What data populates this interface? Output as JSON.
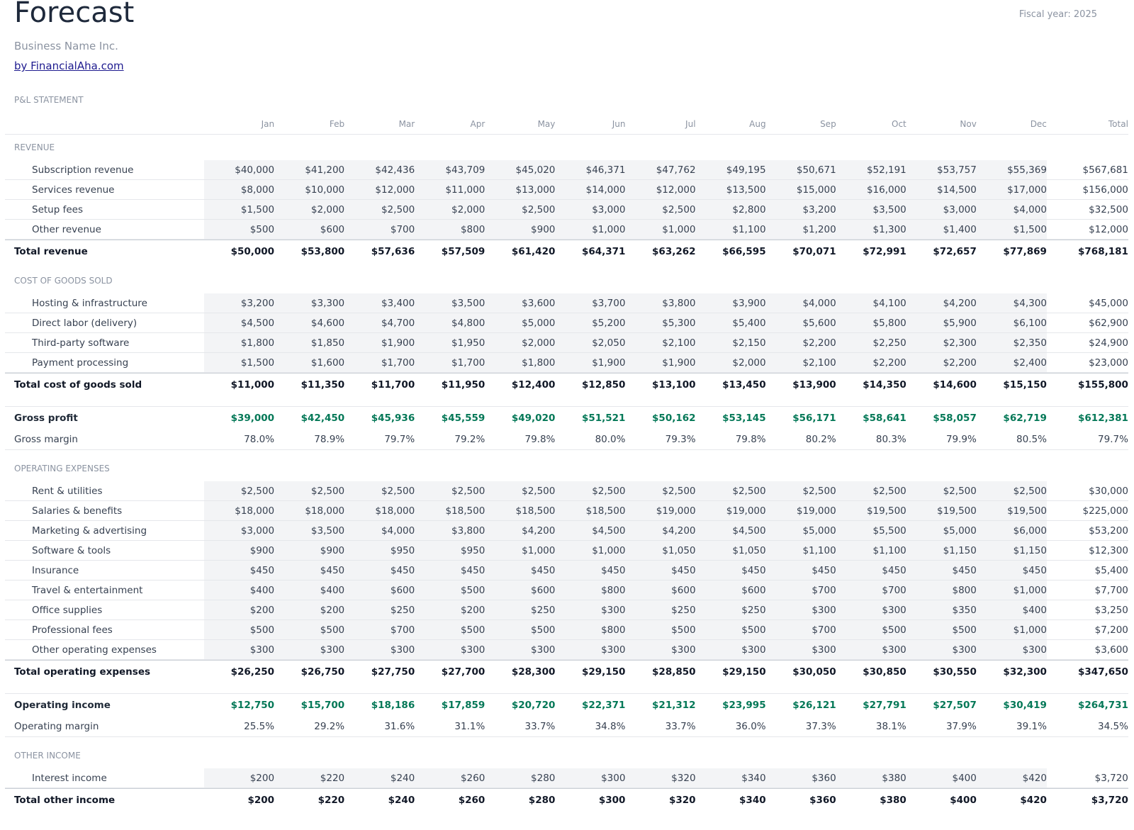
{
  "header": {
    "title": "Forecast",
    "business": "Business Name Inc.",
    "link": "by FinancialAha.com",
    "fiscal_year": "Fiscal year: 2025"
  },
  "statement": "P&L STATEMENT",
  "columns": [
    "Jan",
    "Feb",
    "Mar",
    "Apr",
    "May",
    "Jun",
    "Jul",
    "Aug",
    "Sep",
    "Oct",
    "Nov",
    "Dec",
    "Total"
  ],
  "blocks": [
    {
      "heading": "REVENUE",
      "rows": [
        {
          "label": "Subscription revenue",
          "cells": [
            "$40,000",
            "$41,200",
            "$42,436",
            "$43,709",
            "$45,020",
            "$46,371",
            "$47,762",
            "$49,195",
            "$50,671",
            "$52,191",
            "$53,757",
            "$55,369",
            "$567,681"
          ]
        },
        {
          "label": "Services revenue",
          "cells": [
            "$8,000",
            "$10,000",
            "$12,000",
            "$11,000",
            "$13,000",
            "$14,000",
            "$12,000",
            "$13,500",
            "$15,000",
            "$16,000",
            "$14,500",
            "$17,000",
            "$156,000"
          ]
        },
        {
          "label": "Setup fees",
          "cells": [
            "$1,500",
            "$2,000",
            "$2,500",
            "$2,000",
            "$2,500",
            "$3,000",
            "$2,500",
            "$2,800",
            "$3,200",
            "$3,500",
            "$3,000",
            "$4,000",
            "$32,500"
          ]
        },
        {
          "label": "Other revenue",
          "cells": [
            "$500",
            "$600",
            "$700",
            "$800",
            "$900",
            "$1,000",
            "$1,000",
            "$1,100",
            "$1,200",
            "$1,300",
            "$1,400",
            "$1,500",
            "$12,000"
          ]
        }
      ],
      "total": {
        "label": "Total revenue",
        "cells": [
          "$50,000",
          "$53,800",
          "$57,636",
          "$57,509",
          "$61,420",
          "$64,371",
          "$63,262",
          "$66,595",
          "$70,071",
          "$72,991",
          "$72,657",
          "$77,869",
          "$768,181"
        ]
      }
    },
    {
      "heading": "COST OF GOODS SOLD",
      "rows": [
        {
          "label": "Hosting & infrastructure",
          "cells": [
            "$3,200",
            "$3,300",
            "$3,400",
            "$3,500",
            "$3,600",
            "$3,700",
            "$3,800",
            "$3,900",
            "$4,000",
            "$4,100",
            "$4,200",
            "$4,300",
            "$45,000"
          ]
        },
        {
          "label": "Direct labor (delivery)",
          "cells": [
            "$4,500",
            "$4,600",
            "$4,700",
            "$4,800",
            "$5,000",
            "$5,200",
            "$5,300",
            "$5,400",
            "$5,600",
            "$5,800",
            "$5,900",
            "$6,100",
            "$62,900"
          ]
        },
        {
          "label": "Third-party software",
          "cells": [
            "$1,800",
            "$1,850",
            "$1,900",
            "$1,950",
            "$2,000",
            "$2,050",
            "$2,100",
            "$2,150",
            "$2,200",
            "$2,250",
            "$2,300",
            "$2,350",
            "$24,900"
          ]
        },
        {
          "label": "Payment processing",
          "cells": [
            "$1,500",
            "$1,600",
            "$1,700",
            "$1,700",
            "$1,800",
            "$1,900",
            "$1,900",
            "$2,000",
            "$2,100",
            "$2,200",
            "$2,200",
            "$2,400",
            "$23,000"
          ]
        }
      ],
      "total": {
        "label": "Total cost of goods sold",
        "cells": [
          "$11,000",
          "$11,350",
          "$11,700",
          "$11,950",
          "$12,400",
          "$12,850",
          "$13,100",
          "$13,450",
          "$13,900",
          "$14,350",
          "$14,600",
          "$15,150",
          "$155,800"
        ]
      }
    },
    {
      "profit": {
        "label": "Gross profit",
        "cells": [
          "$39,000",
          "$42,450",
          "$45,936",
          "$45,559",
          "$49,020",
          "$51,521",
          "$50,162",
          "$53,145",
          "$56,171",
          "$58,641",
          "$58,057",
          "$62,719",
          "$612,381"
        ]
      },
      "margin": {
        "label": "Gross margin",
        "cells": [
          "78.0%",
          "78.9%",
          "79.7%",
          "79.2%",
          "79.8%",
          "80.0%",
          "79.3%",
          "79.8%",
          "80.2%",
          "80.3%",
          "79.9%",
          "80.5%",
          "79.7%"
        ]
      }
    },
    {
      "heading": "OPERATING EXPENSES",
      "rows": [
        {
          "label": "Rent & utilities",
          "cells": [
            "$2,500",
            "$2,500",
            "$2,500",
            "$2,500",
            "$2,500",
            "$2,500",
            "$2,500",
            "$2,500",
            "$2,500",
            "$2,500",
            "$2,500",
            "$2,500",
            "$30,000"
          ]
        },
        {
          "label": "Salaries & benefits",
          "cells": [
            "$18,000",
            "$18,000",
            "$18,000",
            "$18,500",
            "$18,500",
            "$18,500",
            "$19,000",
            "$19,000",
            "$19,000",
            "$19,500",
            "$19,500",
            "$19,500",
            "$225,000"
          ]
        },
        {
          "label": "Marketing & advertising",
          "cells": [
            "$3,000",
            "$3,500",
            "$4,000",
            "$3,800",
            "$4,200",
            "$4,500",
            "$4,200",
            "$4,500",
            "$5,000",
            "$5,500",
            "$5,000",
            "$6,000",
            "$53,200"
          ]
        },
        {
          "label": "Software & tools",
          "cells": [
            "$900",
            "$900",
            "$950",
            "$950",
            "$1,000",
            "$1,000",
            "$1,050",
            "$1,050",
            "$1,100",
            "$1,100",
            "$1,150",
            "$1,150",
            "$12,300"
          ]
        },
        {
          "label": "Insurance",
          "cells": [
            "$450",
            "$450",
            "$450",
            "$450",
            "$450",
            "$450",
            "$450",
            "$450",
            "$450",
            "$450",
            "$450",
            "$450",
            "$5,400"
          ]
        },
        {
          "label": "Travel & entertainment",
          "cells": [
            "$400",
            "$400",
            "$600",
            "$500",
            "$600",
            "$800",
            "$600",
            "$600",
            "$700",
            "$700",
            "$800",
            "$1,000",
            "$7,700"
          ]
        },
        {
          "label": "Office supplies",
          "cells": [
            "$200",
            "$200",
            "$250",
            "$200",
            "$250",
            "$300",
            "$250",
            "$250",
            "$300",
            "$300",
            "$350",
            "$400",
            "$3,250"
          ]
        },
        {
          "label": "Professional fees",
          "cells": [
            "$500",
            "$500",
            "$700",
            "$500",
            "$500",
            "$800",
            "$500",
            "$500",
            "$700",
            "$500",
            "$500",
            "$1,000",
            "$7,200"
          ]
        },
        {
          "label": "Other operating expenses",
          "cells": [
            "$300",
            "$300",
            "$300",
            "$300",
            "$300",
            "$300",
            "$300",
            "$300",
            "$300",
            "$300",
            "$300",
            "$300",
            "$3,600"
          ]
        }
      ],
      "total": {
        "label": "Total operating expenses",
        "cells": [
          "$26,250",
          "$26,750",
          "$27,750",
          "$27,700",
          "$28,300",
          "$29,150",
          "$28,850",
          "$29,150",
          "$30,050",
          "$30,850",
          "$30,550",
          "$32,300",
          "$347,650"
        ]
      }
    },
    {
      "profit": {
        "label": "Operating income",
        "cells": [
          "$12,750",
          "$15,700",
          "$18,186",
          "$17,859",
          "$20,720",
          "$22,371",
          "$21,312",
          "$23,995",
          "$26,121",
          "$27,791",
          "$27,507",
          "$30,419",
          "$264,731"
        ]
      },
      "margin": {
        "label": "Operating margin",
        "cells": [
          "25.5%",
          "29.2%",
          "31.6%",
          "31.1%",
          "33.7%",
          "34.8%",
          "33.7%",
          "36.0%",
          "37.3%",
          "38.1%",
          "37.9%",
          "39.1%",
          "34.5%"
        ]
      }
    },
    {
      "heading": "OTHER INCOME",
      "rows": [
        {
          "label": "Interest income",
          "cells": [
            "$200",
            "$220",
            "$240",
            "$260",
            "$280",
            "$300",
            "$320",
            "$340",
            "$360",
            "$380",
            "$400",
            "$420",
            "$3,720"
          ]
        }
      ],
      "total": {
        "label": "Total other income",
        "cells": [
          "$200",
          "$220",
          "$240",
          "$260",
          "$280",
          "$300",
          "$320",
          "$340",
          "$360",
          "$380",
          "$400",
          "$420",
          "$3,720"
        ]
      }
    }
  ]
}
